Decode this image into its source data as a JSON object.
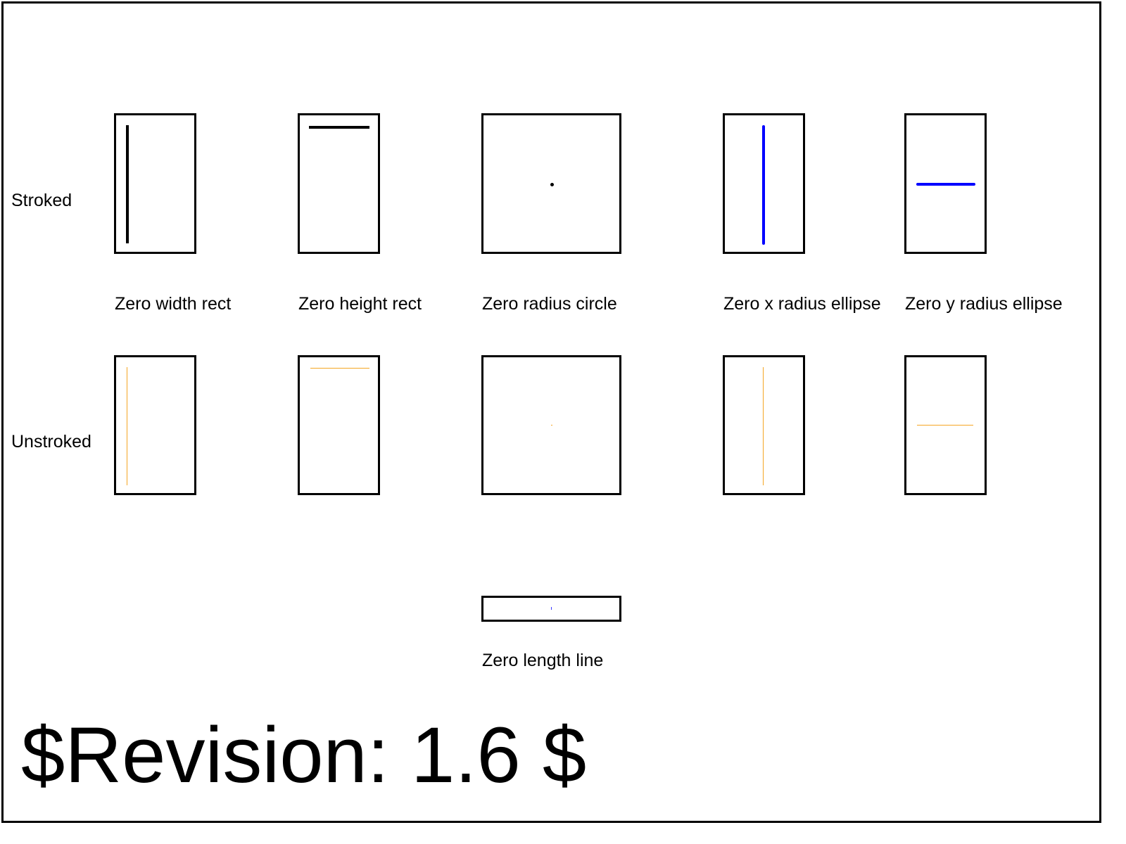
{
  "rows": {
    "stroked": "Stroked",
    "unstroked": "Unstroked"
  },
  "tests": [
    "Zero width rect",
    "Zero height rect",
    "Zero radius circle",
    "Zero x radius ellipse",
    "Zero y radius ellipse"
  ],
  "line_test": "Zero length line",
  "revision": "$Revision: 1.6 $",
  "colors": {
    "stroke_black": "#000000",
    "stroke_blue": "#0000ff",
    "unstroked_orange": "#f5a623",
    "line_dot_blue": "#3b3bff"
  }
}
